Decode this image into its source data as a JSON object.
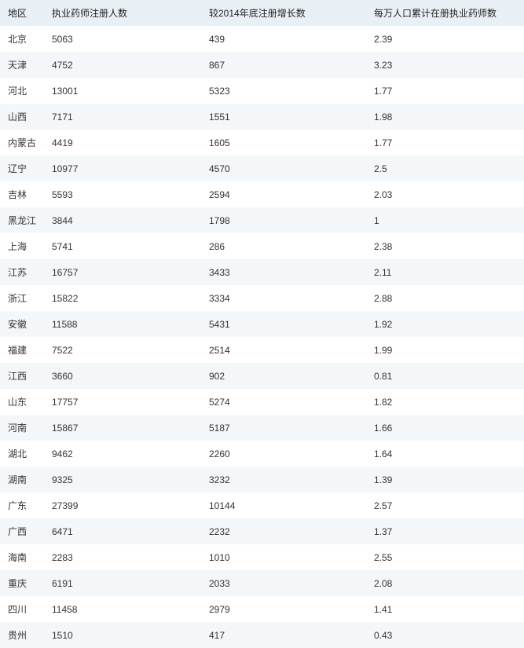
{
  "table": {
    "type": "table",
    "header_bg": "#e8f0f5",
    "row_even_bg": "#f3f7fa",
    "row_odd_bg": "#ffffff",
    "text_color": "#333333",
    "font_size": 12,
    "columns": [
      {
        "key": "region",
        "label": "地区"
      },
      {
        "key": "count",
        "label": "执业药师注册人数"
      },
      {
        "key": "growth",
        "label": "较2014年底注册增长数"
      },
      {
        "key": "per10k",
        "label": "每万人口累计在册执业药师数"
      }
    ],
    "rows": [
      {
        "region": "北京",
        "count": "5063",
        "growth": "439",
        "per10k": "2.39"
      },
      {
        "region": "天津",
        "count": "4752",
        "growth": "867",
        "per10k": "3.23"
      },
      {
        "region": "河北",
        "count": "13001",
        "growth": "5323",
        "per10k": "1.77"
      },
      {
        "region": "山西",
        "count": "7171",
        "growth": "1551",
        "per10k": "1.98"
      },
      {
        "region": "内蒙古",
        "count": "4419",
        "growth": "1605",
        "per10k": "1.77"
      },
      {
        "region": "辽宁",
        "count": "10977",
        "growth": "4570",
        "per10k": "2.5"
      },
      {
        "region": "吉林",
        "count": "5593",
        "growth": "2594",
        "per10k": "2.03"
      },
      {
        "region": "黑龙江",
        "count": "3844",
        "growth": "1798",
        "per10k": "1"
      },
      {
        "region": "上海",
        "count": "5741",
        "growth": "286",
        "per10k": "2.38"
      },
      {
        "region": "江苏",
        "count": "16757",
        "growth": "3433",
        "per10k": "2.11"
      },
      {
        "region": "浙江",
        "count": "15822",
        "growth": "3334",
        "per10k": "2.88"
      },
      {
        "region": "安徽",
        "count": "11588",
        "growth": "5431",
        "per10k": "1.92"
      },
      {
        "region": "福建",
        "count": "7522",
        "growth": "2514",
        "per10k": "1.99"
      },
      {
        "region": "江西",
        "count": "3660",
        "growth": "902",
        "per10k": "0.81"
      },
      {
        "region": "山东",
        "count": "17757",
        "growth": "5274",
        "per10k": "1.82"
      },
      {
        "region": "河南",
        "count": "15867",
        "growth": "5187",
        "per10k": "1.66"
      },
      {
        "region": "湖北",
        "count": "9462",
        "growth": "2260",
        "per10k": "1.64"
      },
      {
        "region": "湖南",
        "count": "9325",
        "growth": "3232",
        "per10k": "1.39"
      },
      {
        "region": "广东",
        "count": "27399",
        "growth": "10144",
        "per10k": "2.57"
      },
      {
        "region": "广西",
        "count": "6471",
        "growth": "2232",
        "per10k": "1.37"
      },
      {
        "region": "海南",
        "count": "2283",
        "growth": "1010",
        "per10k": "2.55"
      },
      {
        "region": "重庆",
        "count": "6191",
        "growth": "2033",
        "per10k": "2.08"
      },
      {
        "region": "四川",
        "count": "11458",
        "growth": "2979",
        "per10k": "1.41"
      },
      {
        "region": "贵州",
        "count": "1510",
        "growth": "417",
        "per10k": "0.43"
      }
    ]
  }
}
